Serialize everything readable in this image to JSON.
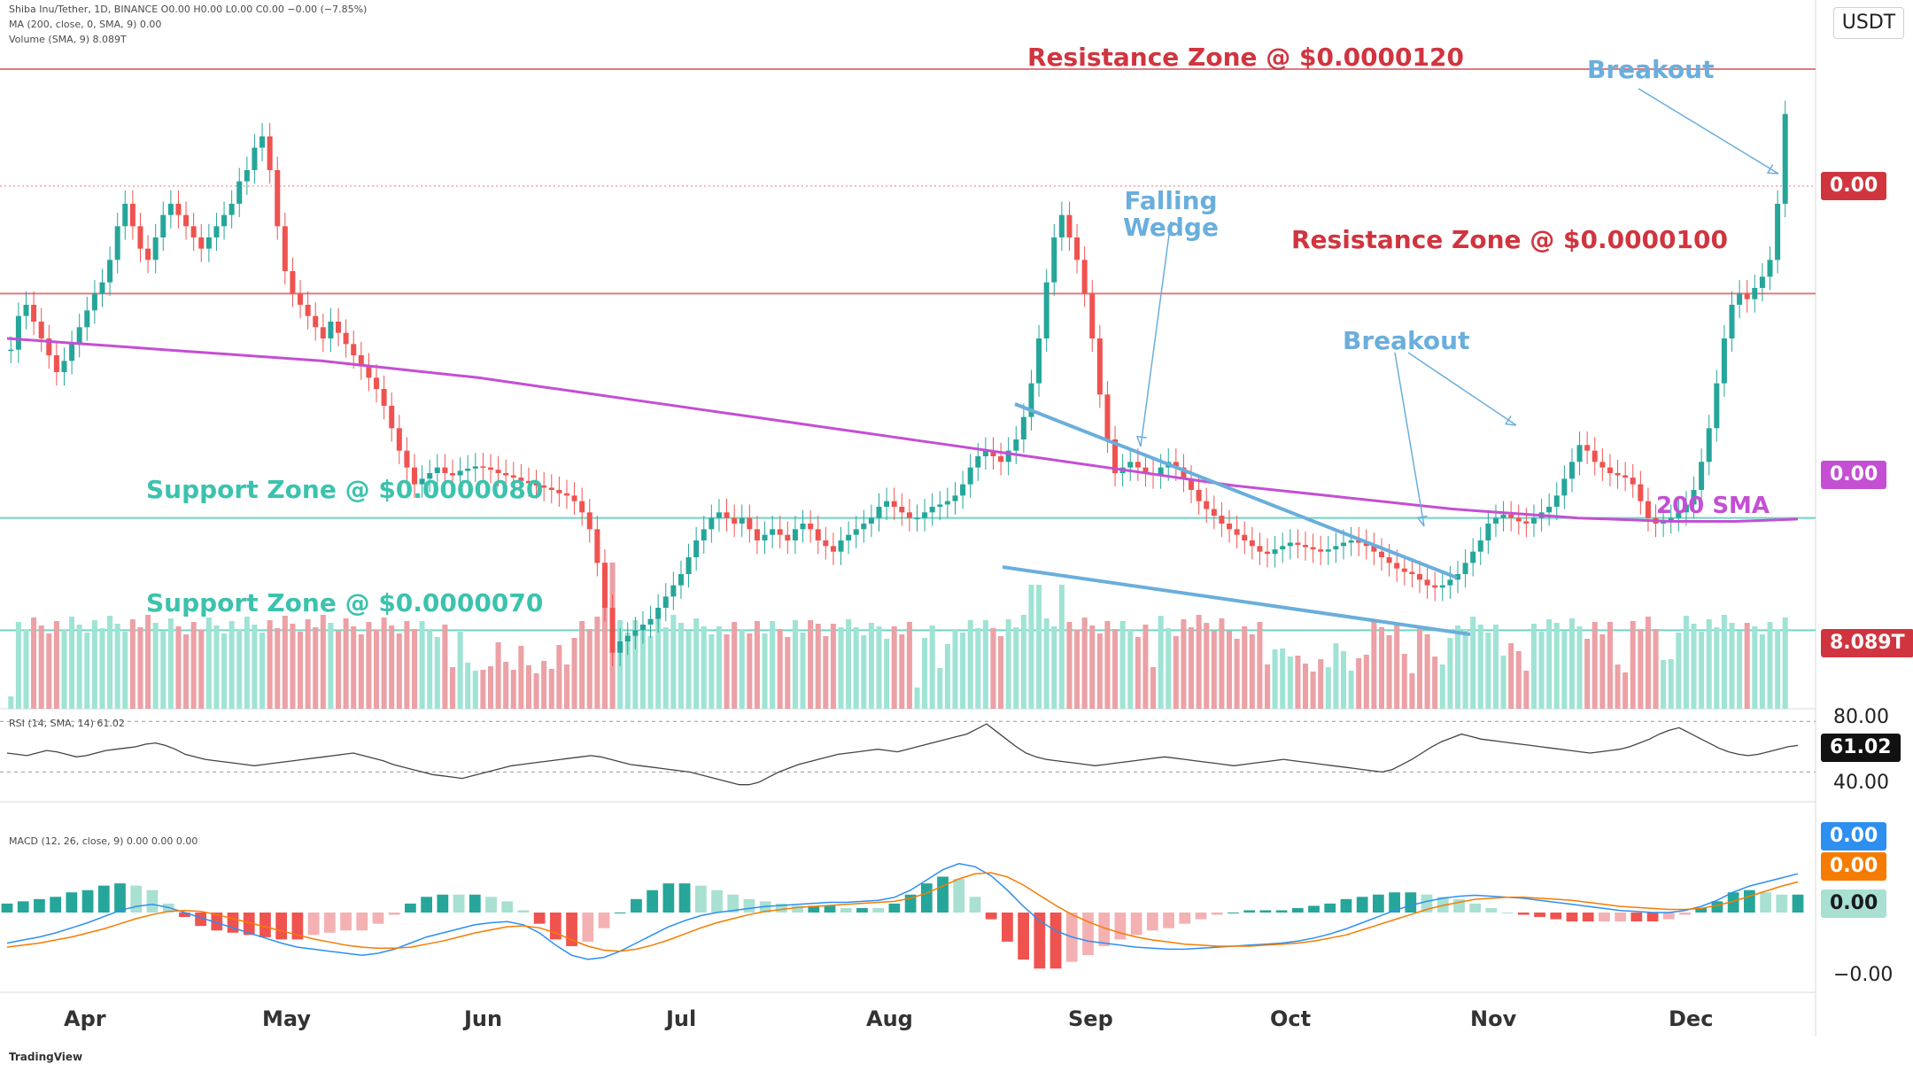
{
  "header": {
    "symbol_line": "Shiba Inu/Tether, 1D, BINANCE  O0.00  H0.00  L0.00  C0.00  −0.00 (−7.85%)",
    "ma_line": "MA (200, close, 0, SMA, 9)  0.00",
    "volume_line": "Volume (SMA, 9)  8.089T"
  },
  "currency": "USDT",
  "brand": "TradingView",
  "price_tags": {
    "last_price": "0.00",
    "sma_value": "0.00",
    "volume": "8.089T",
    "rsi": "61.02",
    "macd": "0.00",
    "signal": "0.00",
    "hist": "0.00"
  },
  "annotations": {
    "resistance_120": "Resistance Zone @ $0.0000120",
    "resistance_100": "Resistance Zone @ $0.0000100",
    "support_80": "Support Zone @ $0.0000080",
    "support_70": "Support Zone @ $0.0000070",
    "breakout_top": "Breakout",
    "breakout_mid": "Breakout",
    "wedge_line1": "Falling",
    "wedge_line2": "Wedge",
    "sma_label": "200 SMA"
  },
  "indicators": {
    "rsi_header": "RSI (14, SMA, 14)  61.02",
    "rsi_levels": [
      "80.00",
      "40.00"
    ],
    "macd_header": "MACD (12, 26, close, 9)  0.00  0.00  0.00",
    "macd_levels": [
      "−0.00"
    ]
  },
  "chart_data": {
    "type": "candlestick",
    "title": "Shiba Inu/Tether, 1D, BINANCE",
    "unit": "USDT",
    "x_tick_labels": [
      "Apr",
      "May",
      "Jun",
      "Jul",
      "Aug",
      "Sep",
      "Oct",
      "Nov",
      "Dec"
    ],
    "price_levels": {
      "resistance_high": 1.2e-05,
      "resistance_low": 1e-05,
      "support_high": 8e-06,
      "support_low": 7e-06
    },
    "price_range": [
      6.3e-06,
      1.23e-05
    ],
    "candles_per_month": 30,
    "series": [
      {
        "name": "Price close (USDT)",
        "values": [
          9.5e-06,
          9.8e-06,
          9.9e-06,
          9.75e-06,
          9.6e-06,
          9.45e-06,
          9.3e-06,
          9.4e-06,
          9.55e-06,
          9.7e-06,
          9.85e-06,
          1e-05,
          1.01e-05,
          1.03e-05,
          1.06e-05,
          1.08e-05,
          1.06e-05,
          1.04e-05,
          1.03e-05,
          1.05e-05,
          1.07e-05,
          1.08e-05,
          1.07e-05,
          1.06e-05,
          1.05e-05,
          1.04e-05,
          1.05e-05,
          1.06e-05,
          1.07e-05,
          1.08e-05,
          1.1e-05,
          1.11e-05,
          1.13e-05,
          1.14e-05,
          1.11e-05,
          1.06e-05,
          1.02e-05,
          1e-05,
          9.9e-06,
          9.8e-06,
          9.7e-06,
          9.6e-06,
          9.75e-06,
          9.65e-06,
          9.55e-06,
          9.45e-06,
          9.35e-06,
          9.25e-06,
          9.15e-06,
          9e-06,
          8.8e-06,
          8.6e-06,
          8.45e-06,
          8.3e-06,
          8.35e-06,
          8.4e-06,
          8.45e-06,
          8.4e-06,
          8.38e-06,
          8.42e-06,
          8.44e-06,
          8.46e-06,
          8.45e-06,
          8.43e-06,
          8.4e-06,
          8.38e-06,
          8.36e-06,
          8.33e-06,
          8.31e-06,
          8.29e-06,
          8.27e-06,
          8.25e-06,
          8.22e-06,
          8.2e-06,
          8.15e-06,
          8.05e-06,
          7.9e-06,
          7.6e-06,
          7.2e-06,
          6.8e-06,
          6.9e-06,
          6.95e-06,
          7e-06,
          7.05e-06,
          7.1e-06,
          7.2e-06,
          7.3e-06,
          7.4e-06,
          7.5e-06,
          7.65e-06,
          7.8e-06,
          7.9e-06,
          8e-06,
          8.05e-06,
          8e-06,
          7.95e-06,
          8e-06,
          7.9e-06,
          7.8e-06,
          7.85e-06,
          7.9e-06,
          7.85e-06,
          7.8e-06,
          7.9e-06,
          7.95e-06,
          7.9e-06,
          7.8e-06,
          7.75e-06,
          7.7e-06,
          7.8e-06,
          7.85e-06,
          7.9e-06,
          7.95e-06,
          8e-06,
          8.1e-06,
          8.15e-06,
          8.1e-06,
          8.05e-06,
          8e-06,
          8e-06,
          8.05e-06,
          8.1e-06,
          8.12e-06,
          8.15e-06,
          8.2e-06,
          8.3e-06,
          8.45e-06,
          8.55e-06,
          8.6e-06,
          8.55e-06,
          8.5e-06,
          8.6e-06,
          8.7e-06,
          8.9e-06,
          9.2e-06,
          9.6e-06,
          1.01e-05,
          1.05e-05,
          1.07e-05,
          1.05e-05,
          1.03e-05,
          1e-05,
          9.6e-06,
          9.1e-06,
          8.7e-06,
          8.4e-06,
          8.45e-06,
          8.5e-06,
          8.45e-06,
          8.4e-06,
          8.38e-06,
          8.45e-06,
          8.5e-06,
          8.45e-06,
          8.35e-06,
          8.25e-06,
          8.15e-06,
          8.08e-06,
          8.02e-06,
          7.95e-06,
          7.9e-06,
          7.85e-06,
          7.8e-06,
          7.75e-06,
          7.7e-06,
          7.68e-06,
          7.72e-06,
          7.75e-06,
          7.78e-06,
          7.76e-06,
          7.74e-06,
          7.72e-06,
          7.7e-06,
          7.72e-06,
          7.75e-06,
          7.78e-06,
          7.8e-06,
          7.78e-06,
          7.75e-06,
          7.7e-06,
          7.65e-06,
          7.6e-06,
          7.55e-06,
          7.52e-06,
          7.5e-06,
          7.45e-06,
          7.4e-06,
          7.38e-06,
          7.4e-06,
          7.45e-06,
          7.5e-06,
          7.6e-06,
          7.7e-06,
          7.8e-06,
          7.95e-06,
          8e-06,
          8.03e-06,
          8e-06,
          7.97e-06,
          7.95e-06,
          8e-06,
          8.05e-06,
          8.1e-06,
          8.2e-06,
          8.35e-06,
          8.5e-06,
          8.65e-06,
          8.6e-06,
          8.5e-06,
          8.45e-06,
          8.4e-06,
          8.38e-06,
          8.36e-06,
          8.3e-06,
          8.15e-06,
          8e-06,
          7.95e-06,
          7.98e-06,
          8e-06,
          8.05e-06,
          8.12e-06,
          8.25e-06,
          8.5e-06,
          8.8e-06,
          9.2e-06,
          9.6e-06,
          9.9e-06,
          1e-05,
          9.95e-06,
          1.005e-05,
          1.015e-05,
          1.03e-05,
          1.08e-05,
          1.16e-05
        ]
      },
      {
        "name": "200 SMA (USDT)",
        "values": [
          9.6e-06,
          9.58e-06,
          9.56e-06,
          9.54e-06,
          9.52e-06,
          9.5e-06,
          9.48e-06,
          9.46e-06,
          9.44e-06,
          9.42e-06,
          9.4e-06,
          9.37e-06,
          9.34e-06,
          9.31e-06,
          9.28e-06,
          9.25e-06,
          9.21e-06,
          9.17e-06,
          9.13e-06,
          9.09e-06,
          9.05e-06,
          9.01e-06,
          8.97e-06,
          8.93e-06,
          8.89e-06,
          8.85e-06,
          8.81e-06,
          8.77e-06,
          8.73e-06,
          8.69e-06,
          8.65e-06,
          8.61e-06,
          8.57e-06,
          8.53e-06,
          8.49e-06,
          8.45e-06,
          8.41e-06,
          8.37e-06,
          8.33e-06,
          8.29e-06,
          8.26e-06,
          8.23e-06,
          8.2e-06,
          8.17e-06,
          8.14e-06,
          8.11e-06,
          8.08e-06,
          8.06e-06,
          8.04e-06,
          8.02e-06,
          8e-06,
          7.99e-06,
          7.98e-06,
          7.97e-06,
          7.97e-06,
          7.97e-06,
          7.98e-06,
          7.99e-06
        ]
      },
      {
        "name": "RSI",
        "values": [
          55,
          54,
          53,
          55,
          57,
          56,
          54,
          52,
          53,
          55,
          57,
          58,
          59,
          60,
          62,
          63,
          61,
          58,
          54,
          52,
          50,
          49,
          48,
          47,
          46,
          45,
          46,
          47,
          48,
          49,
          50,
          51,
          52,
          53,
          54,
          55,
          53,
          51,
          49,
          46,
          44,
          42,
          40,
          38,
          37,
          36,
          35,
          37,
          39,
          41,
          43,
          45,
          46,
          47,
          48,
          49,
          50,
          51,
          52,
          53,
          52,
          50,
          48,
          46,
          45,
          44,
          43,
          42,
          41,
          40,
          38,
          36,
          34,
          32,
          30,
          30,
          32,
          36,
          40,
          43,
          46,
          48,
          50,
          52,
          54,
          55,
          56,
          57,
          58,
          57,
          56,
          58,
          60,
          62,
          64,
          66,
          68,
          70,
          74,
          78,
          72,
          66,
          60,
          55,
          52,
          50,
          49,
          48,
          47,
          46,
          45,
          46,
          47,
          48,
          49,
          50,
          51,
          52,
          51,
          50,
          49,
          48,
          47,
          46,
          45,
          46,
          47,
          48,
          49,
          50,
          49,
          48,
          47,
          46,
          45,
          44,
          43,
          42,
          41,
          40,
          42,
          46,
          50,
          55,
          60,
          64,
          67,
          70,
          68,
          66,
          65,
          64,
          63,
          62,
          61,
          60,
          59,
          58,
          57,
          56,
          55,
          56,
          57,
          58,
          60,
          63,
          66,
          70,
          73,
          75,
          71,
          67,
          63,
          59,
          56,
          54,
          53,
          54,
          56,
          58,
          60,
          61.02
        ]
      },
      {
        "name": "MACD",
        "values": [
          -0.3,
          -0.27,
          -0.24,
          -0.2,
          -0.15,
          -0.1,
          -0.04,
          0.02,
          0.06,
          0.08,
          0.05,
          0.0,
          -0.05,
          -0.1,
          -0.15,
          -0.2,
          -0.25,
          -0.3,
          -0.34,
          -0.36,
          -0.38,
          -0.4,
          -0.42,
          -0.4,
          -0.36,
          -0.3,
          -0.24,
          -0.2,
          -0.16,
          -0.12,
          -0.1,
          -0.09,
          -0.12,
          -0.2,
          -0.32,
          -0.42,
          -0.46,
          -0.44,
          -0.38,
          -0.3,
          -0.22,
          -0.14,
          -0.08,
          -0.03,
          0.0,
          0.02,
          0.04,
          0.06,
          0.07,
          0.08,
          0.09,
          0.1,
          0.1,
          0.11,
          0.12,
          0.15,
          0.22,
          0.32,
          0.42,
          0.48,
          0.45,
          0.36,
          0.22,
          0.06,
          -0.08,
          -0.18,
          -0.24,
          -0.28,
          -0.3,
          -0.32,
          -0.34,
          -0.35,
          -0.36,
          -0.36,
          -0.35,
          -0.34,
          -0.33,
          -0.32,
          -0.31,
          -0.3,
          -0.28,
          -0.25,
          -0.21,
          -0.16,
          -0.1,
          -0.04,
          0.02,
          0.07,
          0.11,
          0.14,
          0.16,
          0.17,
          0.16,
          0.15,
          0.14,
          0.12,
          0.1,
          0.08,
          0.06,
          0.04,
          0.02,
          0.01,
          0.0,
          0.0,
          0.02,
          0.06,
          0.12,
          0.2,
          0.26,
          0.3,
          0.34,
          0.38
        ]
      },
      {
        "name": "Signal",
        "values": [
          -0.34,
          -0.32,
          -0.3,
          -0.27,
          -0.24,
          -0.2,
          -0.16,
          -0.11,
          -0.06,
          -0.02,
          0.01,
          0.02,
          0.01,
          -0.02,
          -0.06,
          -0.1,
          -0.14,
          -0.18,
          -0.22,
          -0.26,
          -0.29,
          -0.32,
          -0.34,
          -0.35,
          -0.35,
          -0.34,
          -0.31,
          -0.28,
          -0.24,
          -0.2,
          -0.17,
          -0.14,
          -0.13,
          -0.15,
          -0.2,
          -0.27,
          -0.33,
          -0.37,
          -0.38,
          -0.36,
          -0.32,
          -0.27,
          -0.21,
          -0.15,
          -0.1,
          -0.06,
          -0.02,
          0.01,
          0.03,
          0.05,
          0.06,
          0.07,
          0.08,
          0.09,
          0.1,
          0.11,
          0.14,
          0.19,
          0.26,
          0.33,
          0.38,
          0.39,
          0.35,
          0.27,
          0.17,
          0.07,
          -0.02,
          -0.09,
          -0.15,
          -0.2,
          -0.24,
          -0.27,
          -0.29,
          -0.31,
          -0.32,
          -0.33,
          -0.33,
          -0.33,
          -0.32,
          -0.31,
          -0.3,
          -0.28,
          -0.25,
          -0.22,
          -0.17,
          -0.12,
          -0.07,
          -0.02,
          0.03,
          0.07,
          0.1,
          0.13,
          0.14,
          0.15,
          0.15,
          0.14,
          0.13,
          0.12,
          0.1,
          0.08,
          0.06,
          0.05,
          0.04,
          0.03,
          0.03,
          0.04,
          0.07,
          0.11,
          0.16,
          0.21,
          0.26,
          0.3
        ]
      }
    ]
  }
}
